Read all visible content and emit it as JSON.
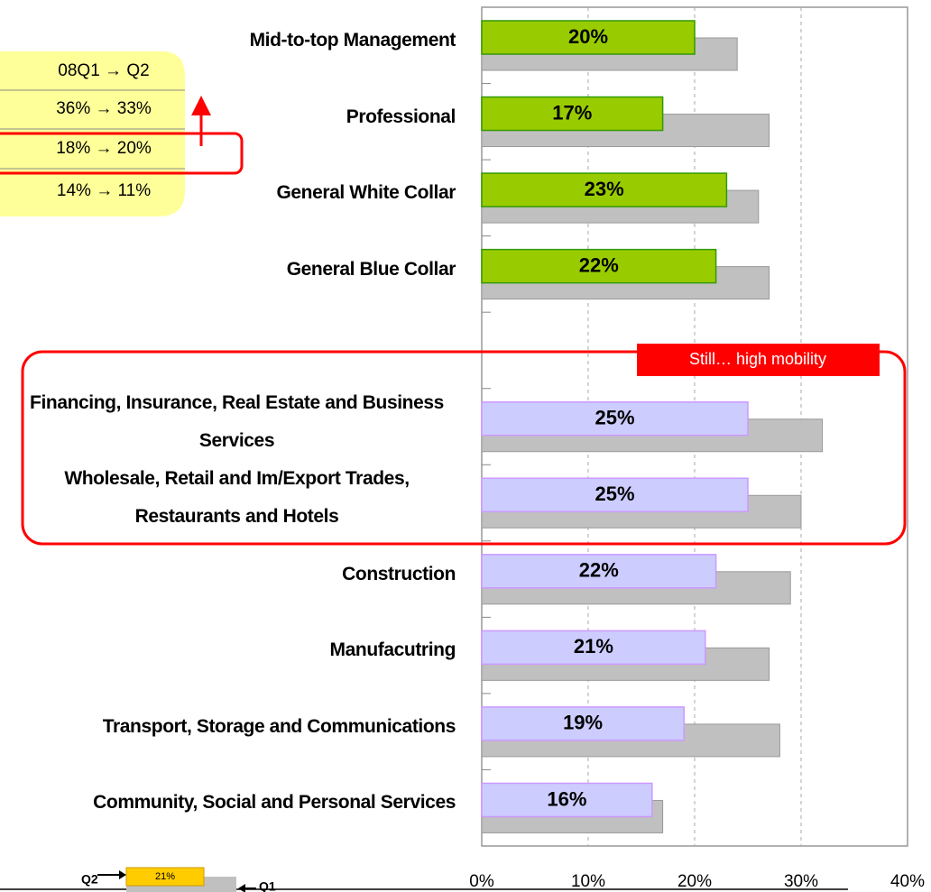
{
  "chart_data": {
    "type": "barh",
    "categories": [
      "Mid-to-top Management",
      "Professional",
      "General White Collar",
      "General Blue Collar",
      null,
      "Financing, Insurance, Real Estate and Business Services",
      "Wholesale, Retail and Im/Export Trades, Restaurants and Hotels",
      "Construction",
      "Manufacutring",
      "Transport, Storage and Communications",
      "Community, Social and Personal Services"
    ],
    "series": [
      {
        "name": "Q2",
        "colors": [
          "#99cc00",
          "#99cc00",
          "#99cc00",
          "#99cc00",
          null,
          "#ccccff",
          "#ccccff",
          "#ccccff",
          "#ccccff",
          "#ccccff",
          "#ccccff"
        ],
        "values": [
          20,
          17,
          23,
          22,
          null,
          25,
          25,
          22,
          21,
          19,
          16
        ],
        "value_labels": [
          "20%",
          "17%",
          "23%",
          "22%",
          null,
          "25%",
          "25%",
          "22%",
          "21%",
          "19%",
          "16%"
        ]
      },
      {
        "name": "Q1",
        "color": "#c0c0c0",
        "values": [
          24,
          27,
          26,
          27,
          null,
          32,
          30,
          29,
          27,
          28,
          17
        ]
      }
    ],
    "xlim": [
      0,
      40
    ],
    "xticks": [
      {
        "value": 0,
        "label": "0%"
      },
      {
        "value": 10,
        "label": "10%"
      },
      {
        "value": 20,
        "label": "20%"
      },
      {
        "value": 30,
        "label": "30%"
      },
      {
        "value": 40,
        "label": "40%"
      }
    ],
    "grid": true,
    "legend_sample": {
      "color": "#ffcc00",
      "label": "21%"
    },
    "callout": "Still… high mobility",
    "table": {
      "header": "08Q1 → Q2",
      "rows": [
        "36% → 33%",
        "18% → 20%",
        "14% → 11%"
      ]
    }
  }
}
